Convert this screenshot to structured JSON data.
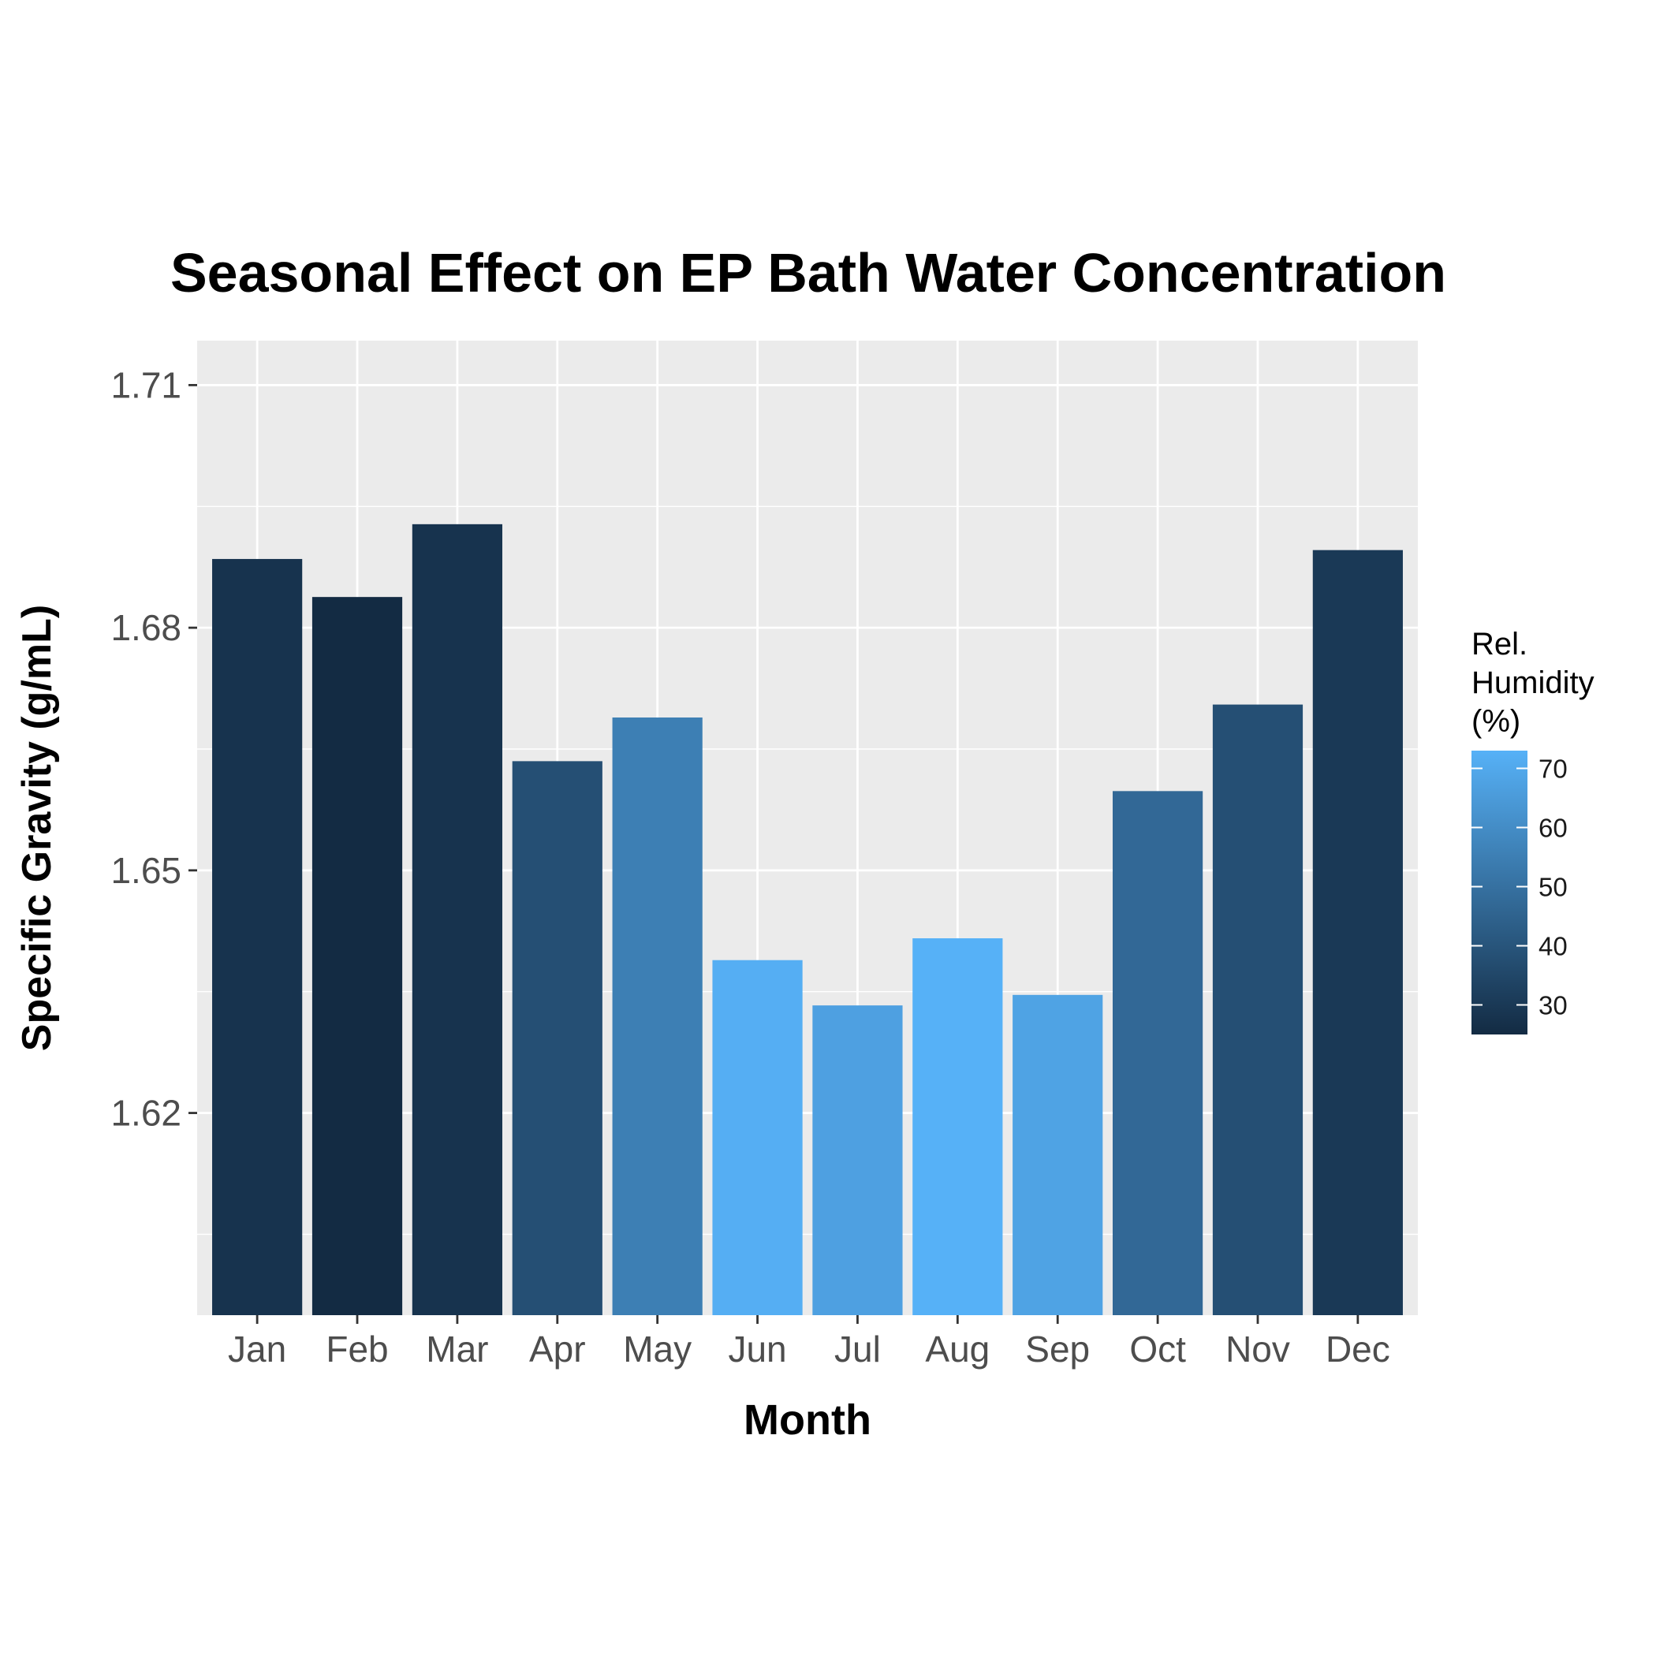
{
  "chart_data": {
    "type": "bar",
    "title": "Seasonal Effect on EP Bath Water Concentration",
    "xlabel": "Month",
    "ylabel": "Specific Gravity (g/mL)",
    "categories": [
      "Jan",
      "Feb",
      "Mar",
      "Apr",
      "May",
      "Jun",
      "Jul",
      "Aug",
      "Sep",
      "Oct",
      "Nov",
      "Dec"
    ],
    "values": [
      1.6885,
      1.6838,
      1.6928,
      1.6635,
      1.6689,
      1.6389,
      1.6333,
      1.6416,
      1.6346,
      1.6598,
      1.6705,
      1.6896
    ],
    "fill_values": [
      28,
      25,
      28,
      38,
      55,
      72,
      67,
      73,
      68,
      47,
      38,
      30
    ],
    "ylim": [
      1.595,
      1.7155
    ],
    "y_ticks": [
      1.62,
      1.65,
      1.68,
      1.71
    ],
    "y_tick_labels": [
      "1.62",
      "1.65",
      "1.68",
      "1.71"
    ],
    "grid": true,
    "legend": {
      "title_lines": [
        "Rel.",
        "Humidity",
        "(%)"
      ],
      "position": "right",
      "min": 25,
      "max": 73,
      "ticks": [
        30,
        40,
        50,
        60,
        70
      ],
      "tick_labels": [
        "30",
        "40",
        "50",
        "60",
        "70"
      ],
      "low_color": "#132B43",
      "high_color": "#56B1F7"
    },
    "colors": {
      "panel_background": "#EBEBEB",
      "grid": "#FFFFFF",
      "tick_label": "#4D4D4D"
    }
  }
}
